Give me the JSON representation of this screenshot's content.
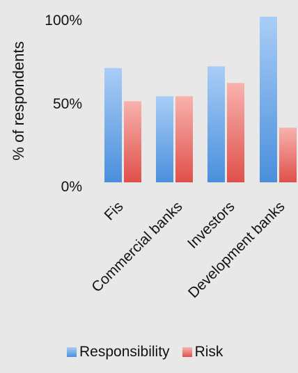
{
  "chart_data": {
    "type": "bar",
    "categories": [
      "Fis",
      "Commercial banks",
      "Investors",
      "Development banks"
    ],
    "series": [
      {
        "name": "Responsibility",
        "values": [
          69,
          52,
          70,
          100
        ],
        "color": "#6aa6ea"
      },
      {
        "name": "Risk",
        "values": [
          49,
          52,
          60,
          33
        ],
        "color": "#f07f7a"
      }
    ],
    "title": "",
    "xlabel": "",
    "ylabel": "% of respondents",
    "ylim": [
      0,
      100
    ],
    "yticks": [
      "0%",
      "50%",
      "100%"
    ],
    "grid": false,
    "legend_position": "bottom"
  }
}
